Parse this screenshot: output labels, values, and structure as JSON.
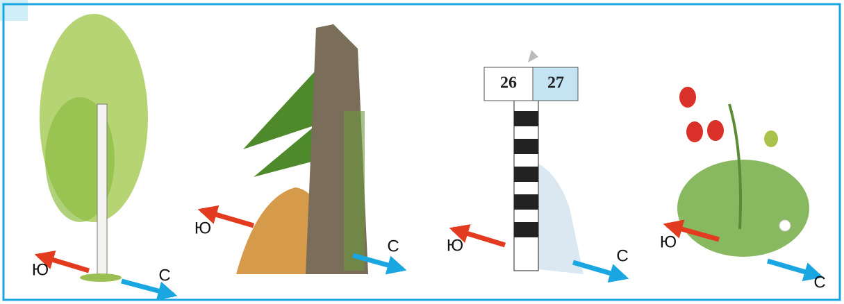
{
  "panels": [
    {
      "south": "Ю",
      "north": "С"
    },
    {
      "south": "Ю",
      "north": "С"
    },
    {
      "south": "Ю",
      "north": "С",
      "signs": [
        "26",
        "27"
      ]
    },
    {
      "south": "Ю",
      "north": "С"
    }
  ]
}
